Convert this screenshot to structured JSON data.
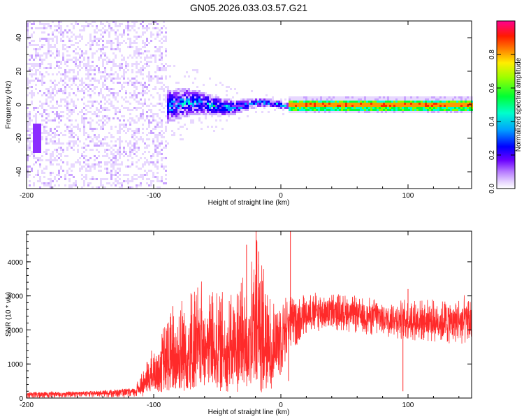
{
  "title": "GN05.2026.033.03.57.G21",
  "chart_data": [
    {
      "type": "heatmap",
      "xlabel": "Height of straight line (km)",
      "ylabel": "Frequency (Hz)",
      "xlim": [
        -200,
        150
      ],
      "ylim": [
        -50,
        50
      ],
      "xticks": [
        -200,
        -100,
        0,
        100
      ],
      "yticks": [
        -40,
        -20,
        0,
        20,
        40
      ],
      "colorbar": {
        "label": "Normalized spectral amplitude",
        "range": [
          0,
          1
        ],
        "ticks": [
          "0.0",
          "0.2",
          "0.4",
          "0.6",
          "0.8"
        ]
      },
      "colormap": [
        "#ffffff",
        "#e8d8ff",
        "#c9a3ff",
        "#8c2cff",
        "#3a00ff",
        "#0000ff",
        "#00a0ff",
        "#00ffd0",
        "#00ff40",
        "#7fff00",
        "#ffff00",
        "#ff9900",
        "#ff2a00",
        "#ff0080"
      ],
      "features": {
        "noise_region_x": [
          -200,
          -90
        ],
        "transition_x": [
          -90,
          5
        ],
        "tone_region_x": [
          5,
          150
        ],
        "tone_frequency_hz": 0.5
      }
    },
    {
      "type": "line",
      "xlabel": "Height of straight line (km)",
      "ylabel": "SNR (10 * v/v)",
      "xlim": [
        -200,
        150
      ],
      "ylim": [
        0,
        4900
      ],
      "xticks": [
        -200,
        -100,
        0,
        100
      ],
      "yticks": [
        0,
        1000,
        2000,
        3000,
        4000
      ],
      "series": [
        {
          "color": "#ff2a2a",
          "envelope": [
            {
              "x": -200,
              "low": 0,
              "high": 150,
              "mean": 130
            },
            {
              "x": -150,
              "low": 30,
              "high": 200,
              "mean": 150
            },
            {
              "x": -115,
              "low": 0,
              "high": 300,
              "mean": 190
            },
            {
              "x": -105,
              "low": 50,
              "high": 1150,
              "mean": 500
            },
            {
              "x": -95,
              "low": 150,
              "high": 2000,
              "mean": 800
            },
            {
              "x": -80,
              "low": 150,
              "high": 3000,
              "mean": 1000
            },
            {
              "x": -60,
              "low": 250,
              "high": 3500,
              "mean": 1300
            },
            {
              "x": -40,
              "low": 150,
              "high": 3000,
              "mean": 1200
            },
            {
              "x": -25,
              "low": 100,
              "high": 3800,
              "mean": 1500
            },
            {
              "x": -18,
              "low": 100,
              "high": 4900,
              "mean": 1600
            },
            {
              "x": -10,
              "low": 0,
              "high": 3200,
              "mean": 1200
            },
            {
              "x": -3,
              "low": 300,
              "high": 3000,
              "mean": 1700
            },
            {
              "x": 5,
              "low": 1200,
              "high": 3000,
              "mean": 2200
            },
            {
              "x": 20,
              "low": 1900,
              "high": 3100,
              "mean": 2500
            },
            {
              "x": 40,
              "low": 2000,
              "high": 3100,
              "mean": 2550
            },
            {
              "x": 60,
              "low": 1900,
              "high": 3000,
              "mean": 2450
            },
            {
              "x": 80,
              "low": 1800,
              "high": 2900,
              "mean": 2350
            },
            {
              "x": 100,
              "low": 1700,
              "high": 2900,
              "mean": 2300
            },
            {
              "x": 130,
              "low": 1600,
              "high": 2900,
              "mean": 2250
            },
            {
              "x": 150,
              "low": 1500,
              "high": 3100,
              "mean": 2200
            }
          ],
          "spikes": [
            {
              "x": -19.5,
              "y": 4900
            },
            {
              "x": -17.5,
              "y": 4300
            },
            {
              "x": -27,
              "y": 4500
            },
            {
              "x": 7.5,
              "y": 4900
            },
            {
              "x": 6,
              "y": 500
            },
            {
              "x": -85,
              "y": 2700
            },
            {
              "x": 96,
              "y": 200
            },
            {
              "x": 100,
              "y": 3200
            }
          ]
        }
      ]
    }
  ]
}
